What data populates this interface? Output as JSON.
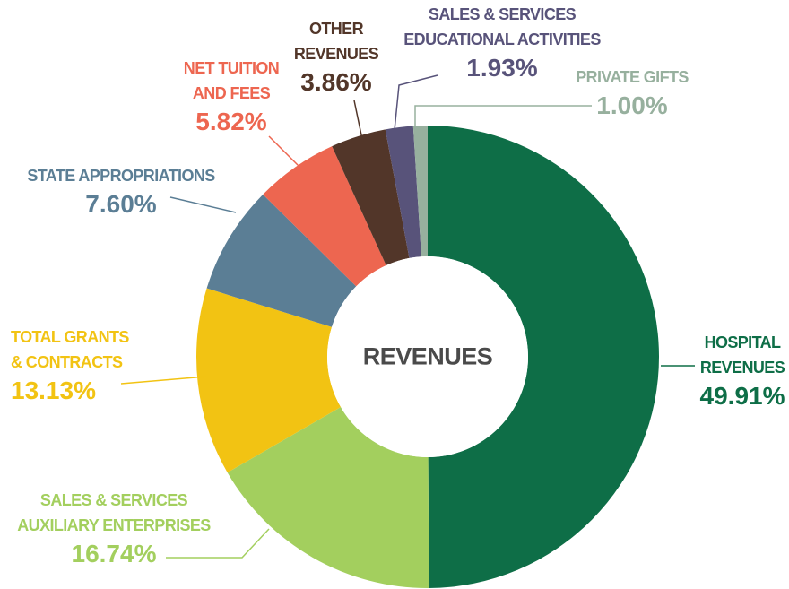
{
  "chart_data": {
    "type": "donut",
    "center_label": "REVENUES",
    "categories": [
      "HOSPITAL\nREVENUES",
      "SALES & SERVICES\nAUXILIARY ENTERPRISES",
      "TOTAL GRANTS\n& CONTRACTS",
      "STATE APPROPRIATIONS",
      "NET TUITION\nAND FEES",
      "OTHER\nREVENUES",
      "SALES & SERVICES\nEDUCATIONAL ACTIVITIES",
      "PRIVATE GIFTS"
    ],
    "values": [
      49.91,
      16.74,
      13.13,
      7.6,
      5.82,
      3.86,
      1.93,
      1.0
    ],
    "value_labels": [
      "49.91%",
      "16.74%",
      "13.13%",
      "7.60%",
      "5.82%",
      "3.86%",
      "1.93%",
      "1.00%"
    ],
    "colors": [
      "#0e6e47",
      "#a3cf5e",
      "#f2c313",
      "#5b7e95",
      "#ed6650",
      "#523629",
      "#58537a",
      "#97b09e"
    ]
  }
}
